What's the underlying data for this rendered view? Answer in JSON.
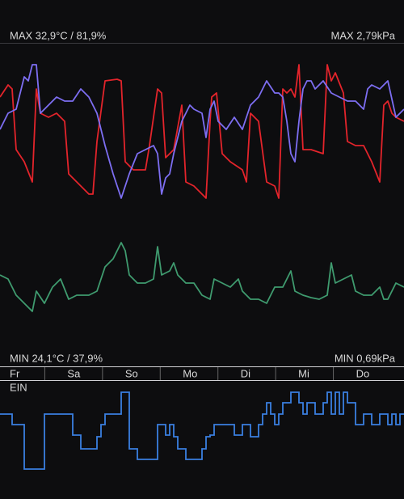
{
  "chart_data": [
    {
      "type": "line",
      "annotations": [
        "MAX 32,9°C / 81,9%",
        "MAX 2,79kPa",
        "MIN 24,1°C / 37,9%",
        "MIN 0,69kPa"
      ],
      "categories": [
        "Fr",
        "Sa",
        "So",
        "Mo",
        "Di",
        "Mi",
        "Do"
      ],
      "xlim": [
        0,
        500
      ],
      "ylim": [
        0,
        400
      ],
      "series": [
        {
          "color": "#e3242b",
          "x": [
            0,
            10,
            15,
            20,
            30,
            40,
            45,
            50,
            60,
            70,
            80,
            85,
            95,
            110,
            115,
            120,
            130,
            145,
            150,
            155,
            165,
            180,
            185,
            195,
            200,
            205,
            215,
            225,
            230,
            240,
            250,
            255,
            260,
            262,
            268,
            275,
            285,
            300,
            305,
            310,
            320,
            330,
            340,
            345,
            350,
            355,
            360,
            365,
            370,
            375,
            385,
            400,
            405,
            410,
            415,
            425,
            430,
            440,
            450,
            460,
            470,
            475,
            480,
            485,
            490,
            500
          ],
          "values": [
            333,
            348,
            343,
            268,
            253,
            228,
            343,
            313,
            308,
            313,
            303,
            238,
            228,
            213,
            213,
            278,
            353,
            355,
            353,
            253,
            243,
            243,
            273,
            343,
            338,
            258,
            268,
            323,
            228,
            223,
            213,
            208,
            303,
            333,
            338,
            263,
            253,
            243,
            228,
            313,
            303,
            228,
            223,
            208,
            343,
            338,
            343,
            333,
            373,
            268,
            268,
            263,
            373,
            353,
            363,
            338,
            278,
            273,
            273,
            253,
            228,
            323,
            328,
            313,
            308,
            303
          ]
        },
        {
          "color": "#7d6ef2",
          "x": [
            0,
            10,
            20,
            30,
            35,
            40,
            45,
            50,
            60,
            70,
            80,
            90,
            100,
            110,
            120,
            130,
            140,
            150,
            160,
            170,
            180,
            190,
            195,
            200,
            205,
            210,
            215,
            225,
            235,
            240,
            250,
            255,
            260,
            265,
            270,
            280,
            290,
            300,
            310,
            320,
            330,
            340,
            345,
            350,
            355,
            360,
            365,
            370,
            375,
            380,
            385,
            390,
            400,
            410,
            420,
            430,
            440,
            450,
            455,
            460,
            470,
            480,
            490,
            500
          ],
          "values": [
            293,
            313,
            318,
            358,
            353,
            373,
            373,
            313,
            323,
            333,
            328,
            328,
            343,
            333,
            313,
            273,
            238,
            208,
            238,
            263,
            268,
            273,
            263,
            213,
            233,
            238,
            263,
            303,
            323,
            318,
            313,
            283,
            318,
            328,
            303,
            293,
            308,
            293,
            323,
            333,
            353,
            338,
            338,
            333,
            303,
            263,
            253,
            303,
            343,
            353,
            353,
            343,
            353,
            338,
            333,
            328,
            328,
            318,
            343,
            348,
            343,
            353,
            308,
            318
          ]
        },
        {
          "color": "#3f9b6f",
          "x": [
            0,
            10,
            20,
            30,
            40,
            45,
            55,
            65,
            75,
            85,
            95,
            110,
            120,
            125,
            130,
            140,
            150,
            155,
            160,
            170,
            180,
            190,
            195,
            200,
            210,
            215,
            220,
            230,
            240,
            250,
            260,
            265,
            275,
            285,
            295,
            300,
            310,
            320,
            330,
            340,
            350,
            360,
            365,
            375,
            385,
            395,
            405,
            410,
            415,
            425,
            435,
            440,
            450,
            460,
            470,
            475,
            480,
            490,
            500
          ],
          "values": [
            113,
            108,
            88,
            78,
            68,
            93,
            78,
            98,
            108,
            83,
            88,
            88,
            93,
            108,
            123,
            133,
            153,
            143,
            113,
            103,
            103,
            108,
            148,
            113,
            118,
            128,
            113,
            103,
            103,
            88,
            83,
            108,
            103,
            98,
            108,
            93,
            83,
            83,
            78,
            98,
            98,
            118,
            93,
            88,
            85,
            83,
            88,
            128,
            103,
            108,
            113,
            93,
            88,
            88,
            98,
            83,
            83,
            103,
            98
          ]
        }
      ]
    },
    {
      "type": "step",
      "title": "EIN",
      "color": "#3a7fe0",
      "xlim": [
        0,
        500
      ],
      "ylim": [
        0,
        100
      ],
      "x": [
        0,
        15,
        30,
        55,
        90,
        100,
        120,
        125,
        130,
        150,
        160,
        170,
        195,
        205,
        210,
        215,
        220,
        230,
        250,
        255,
        260,
        265,
        280,
        290,
        300,
        310,
        320,
        325,
        330,
        335,
        340,
        345,
        350,
        360,
        370,
        375,
        380,
        390,
        400,
        405,
        410,
        415,
        420,
        425,
        430,
        440,
        450,
        460,
        470,
        480,
        485,
        490,
        495
      ],
      "values": [
        73,
        60,
        5,
        73,
        47,
        30,
        45,
        60,
        73,
        100,
        30,
        17,
        60,
        47,
        60,
        45,
        30,
        17,
        30,
        45,
        47,
        60,
        60,
        47,
        60,
        45,
        60,
        73,
        87,
        73,
        60,
        73,
        87,
        100,
        87,
        73,
        87,
        73,
        87,
        100,
        73,
        100,
        73,
        100,
        87,
        60,
        73,
        60,
        73,
        60,
        73,
        60,
        73
      ]
    }
  ]
}
